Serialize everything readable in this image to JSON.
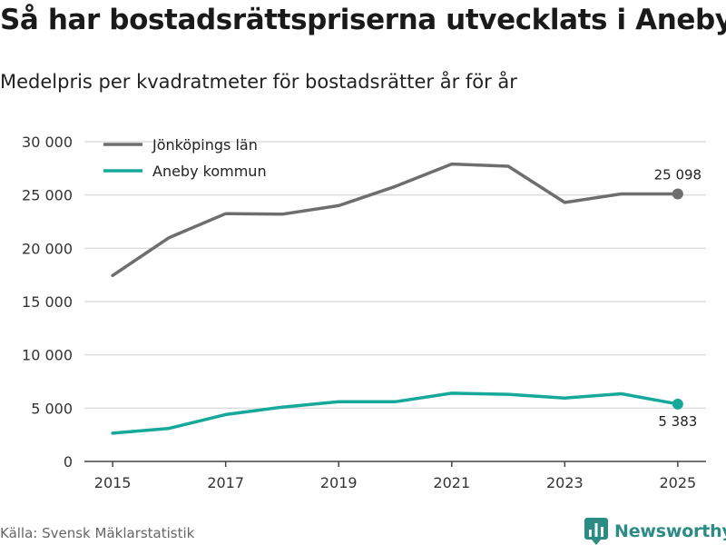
{
  "header": {
    "title": "Så har bostadsrättspriserna utvecklats i Aneby",
    "subtitle": "Medelpris per kvadratmeter för bostadsrätter år för år"
  },
  "footer": {
    "source": "Källa: Svensk Mäklarstatistik",
    "brand": "Newsworthy"
  },
  "colors": {
    "jonkoping": "#6e6e6e",
    "aneby": "#16a89a",
    "grid": "#dddddd",
    "brand": "#2a8c84"
  },
  "chart_data": {
    "type": "line",
    "title": "Så har bostadsrättspriserna utvecklats i Aneby",
    "subtitle": "Medelpris per kvadratmeter för bostadsrätter år för år",
    "xlabel": "",
    "ylabel": "",
    "x": [
      2015,
      2016,
      2017,
      2018,
      2019,
      2020,
      2021,
      2022,
      2023,
      2024,
      2025
    ],
    "xticks": [
      "2015",
      "2017",
      "2019",
      "2021",
      "2023",
      "2025"
    ],
    "xlim": [
      2014.5,
      2025.5
    ],
    "ylim": [
      0,
      30000
    ],
    "yticks": [
      0,
      5000,
      10000,
      15000,
      20000,
      25000,
      30000
    ],
    "ytick_labels": [
      "0",
      "5 000",
      "10 000",
      "15 000",
      "20 000",
      "25 000",
      "30 000"
    ],
    "grid": true,
    "legend_position": "top-left",
    "series": [
      {
        "name": "Jönköpings län",
        "color_key": "jonkoping",
        "values": [
          17450,
          21000,
          23250,
          23200,
          24000,
          25800,
          27900,
          27700,
          24300,
          25100,
          25098
        ],
        "end_label": "25 098"
      },
      {
        "name": "Aneby kommun",
        "color_key": "aneby",
        "values": [
          2650,
          3100,
          4400,
          5100,
          5600,
          5600,
          6400,
          6300,
          5950,
          6350,
          5383
        ],
        "end_label": "5 383"
      }
    ]
  }
}
